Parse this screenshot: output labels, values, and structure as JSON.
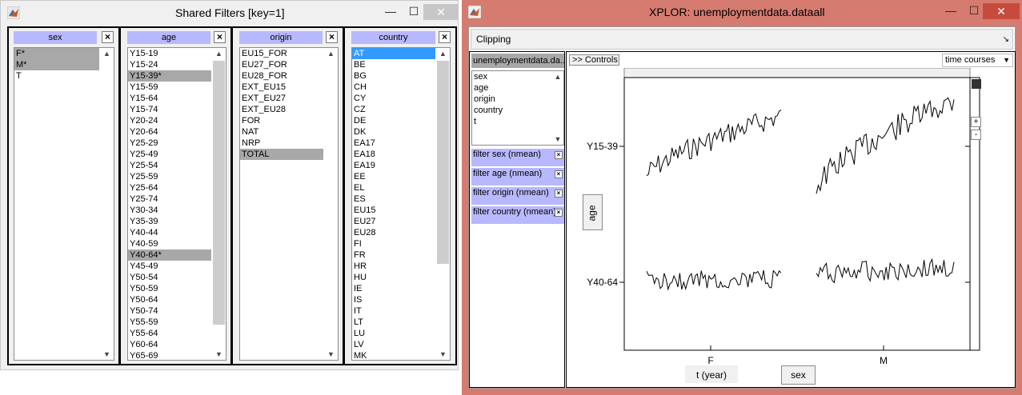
{
  "shared_filters": {
    "title": "Shared Filters [key=1]",
    "minimize": "—",
    "maximize": "☐",
    "close": "✕",
    "remove_label": "×",
    "panels": [
      {
        "header": "sex",
        "items": [
          "F*",
          "M*",
          "T"
        ]
      },
      {
        "header": "age",
        "items": [
          "Y15-19",
          "Y15-24",
          "Y15-39*",
          "Y15-59",
          "Y15-64",
          "Y15-74",
          "Y20-24",
          "Y20-64",
          "Y25-29",
          "Y25-49",
          "Y25-54",
          "Y25-59",
          "Y25-64",
          "Y25-74",
          "Y30-34",
          "Y35-39",
          "Y40-44",
          "Y40-59",
          "Y40-64*",
          "Y45-49",
          "Y50-54",
          "Y50-59",
          "Y50-64",
          "Y50-74",
          "Y55-59",
          "Y55-64",
          "Y60-64",
          "Y65-69"
        ]
      },
      {
        "header": "origin",
        "items": [
          "EU15_FOR",
          "EU27_FOR",
          "EU28_FOR",
          "EXT_EU15",
          "EXT_EU27",
          "EXT_EU28",
          "FOR",
          "NAT",
          "NRP",
          "TOTAL"
        ]
      },
      {
        "header": "country",
        "items": [
          "AT",
          "BE",
          "BG",
          "CH",
          "CY",
          "CZ",
          "DE",
          "DK",
          "EA17",
          "EA18",
          "EA19",
          "EE",
          "EL",
          "ES",
          "EU15",
          "EU27",
          "EU28",
          "FI",
          "FR",
          "HR",
          "HU",
          "IE",
          "IS",
          "IT",
          "LT",
          "LU",
          "LV",
          "MK"
        ]
      }
    ]
  },
  "xplor": {
    "title": "XPLOR: unemploymentdata.dataall",
    "minimize": "—",
    "maximize": "☐",
    "close": "✕",
    "clipping_label": "Clipping",
    "dataset_header": "unemploymentdata.da...",
    "variables": [
      "sex",
      "age",
      "origin",
      "country",
      "t"
    ],
    "filters": [
      {
        "label": "filter sex (nmean)",
        "remove": "×"
      },
      {
        "label": "filter age (nmean)",
        "remove": "×"
      },
      {
        "label": "filter origin (nmean)",
        "remove": "×"
      },
      {
        "label": "filter country (nmean)",
        "remove": "×"
      }
    ],
    "controls_button": ">> Controls",
    "display_mode": "time courses",
    "plus_label": "+",
    "minus_label": "-",
    "y_axis_button": "age",
    "x_axis_button_1": "t (year)",
    "x_axis_button_2": "sex"
  },
  "chart_data": {
    "type": "line",
    "rows": [
      "Y15-39",
      "Y40-64"
    ],
    "columns": [
      "F",
      "M"
    ],
    "row_variable": "age",
    "column_variable": "sex",
    "time_variable": "t (year)"
  }
}
